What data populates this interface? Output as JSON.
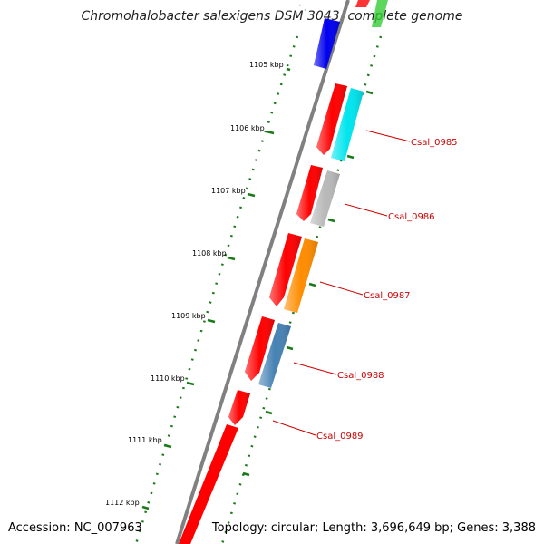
{
  "title": "Chromohalobacter salexigens DSM 3043, complete genome",
  "footer": {
    "accession": "Accession: NC_007963",
    "topology": "Topology: circular; Length: 3,696,649 bp; Genes: 3,388"
  },
  "ticks": [
    "1105 kbp",
    "1106 kbp",
    "1107 kbp",
    "1108 kbp",
    "1109 kbp",
    "1110 kbp",
    "1111 kbp",
    "1112 kbp"
  ],
  "gene_labels": [
    "Csal_0985",
    "Csal_0986",
    "Csal_0987",
    "Csal_0988",
    "Csal_0989"
  ],
  "colors": {
    "backbone": "#808080",
    "forward_gene": "#ff0000",
    "tick_dots": "#1a7a1a",
    "label": "#cc0000",
    "Csal_0985": "#00e5ee",
    "Csal_0986": "#b8b8b8",
    "Csal_0987": "#ff8c00",
    "Csal_0988": "#4682b4",
    "blue_gene": "#0000ee",
    "green_gene": "#33cc33"
  }
}
